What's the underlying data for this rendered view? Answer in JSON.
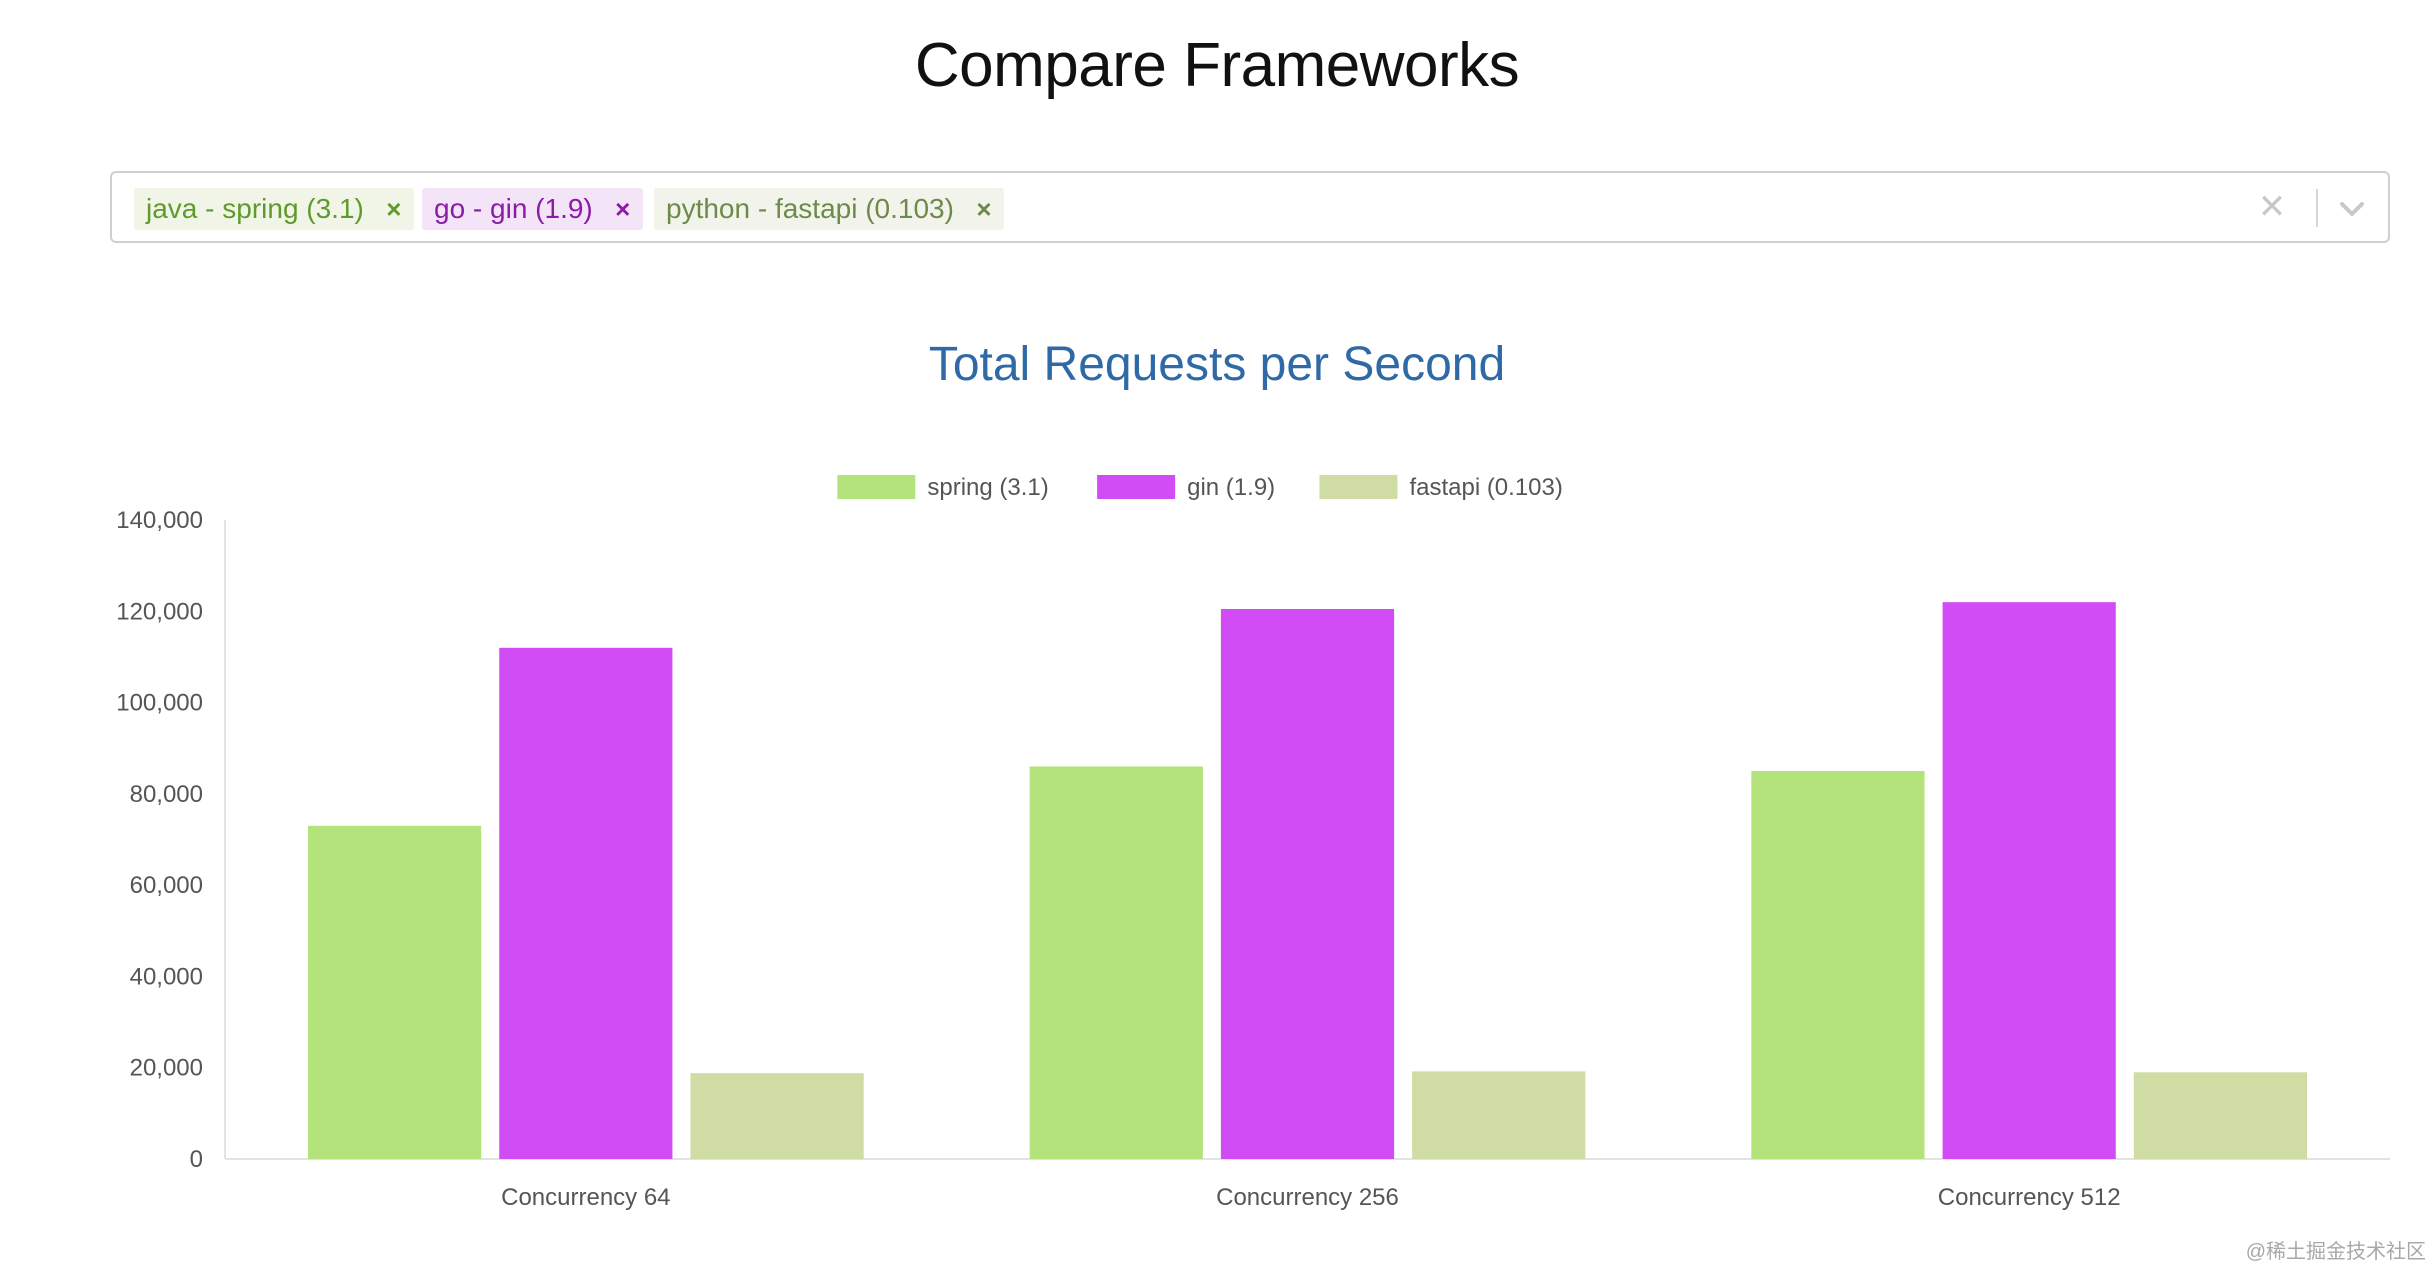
{
  "page": {
    "title": "Compare Frameworks"
  },
  "selector": {
    "chips": [
      {
        "label": "java - spring (3.1)",
        "color": "#5f9a2a",
        "bg": "#f0f5e8"
      },
      {
        "label": "go - gin (1.9)",
        "color": "#8d1aa8",
        "bg": "#f3e5f7"
      },
      {
        "label": "python - fastapi (0.103)",
        "color": "#6e8a4a",
        "bg": "#f2f4ec"
      }
    ],
    "remove_glyph": "×",
    "clear_glyph": "✕",
    "clear_icon": "close-icon",
    "toggle_icon": "chevron-down-icon"
  },
  "chart_data": {
    "type": "bar",
    "title": "Total Requests per Second",
    "categories": [
      "Concurrency 64",
      "Concurrency 256",
      "Concurrency 512"
    ],
    "series": [
      {
        "name": "spring (3.1)",
        "color": "#b3e37a",
        "values": [
          73000,
          86000,
          85000
        ]
      },
      {
        "name": "gin (1.9)",
        "color": "#d24cf5",
        "values": [
          112000,
          120500,
          122000
        ]
      },
      {
        "name": "fastapi (0.103)",
        "color": "#cfdca3",
        "values": [
          18800,
          19200,
          19000
        ]
      }
    ],
    "ylim": [
      0,
      140000
    ],
    "yticks": [
      "0",
      "20,000",
      "40,000",
      "60,000",
      "80,000",
      "100,000",
      "120,000",
      "140,000"
    ],
    "ytick_values": [
      0,
      20000,
      40000,
      60000,
      80000,
      100000,
      120000,
      140000
    ],
    "legend_position": "top-center",
    "grid": false,
    "title_color": "#2f6aa6"
  },
  "watermark": "@稀土掘金技术社区"
}
